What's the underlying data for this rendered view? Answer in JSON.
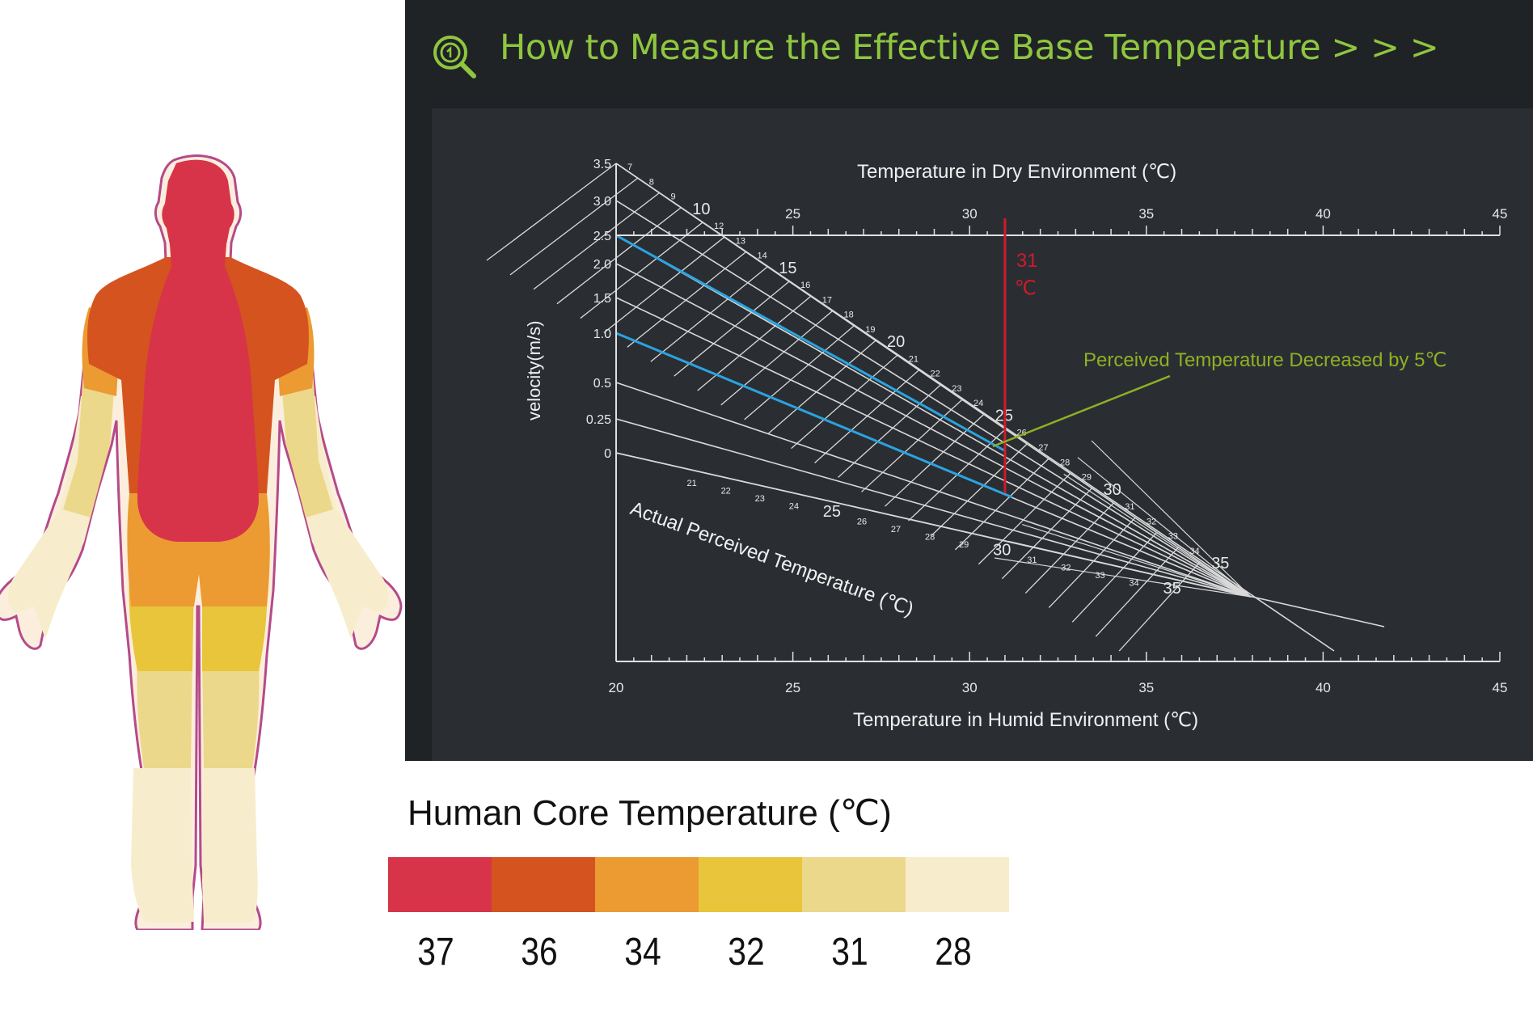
{
  "header": {
    "title": "How to Measure the Effective Base Temperature > > >",
    "icon": "magnifier-icon"
  },
  "chart_data": {
    "type": "nomogram",
    "title": "",
    "top_axis": {
      "label": "Temperature  in  Dry Environment (℃)",
      "range": [
        20,
        45
      ],
      "ticks": [
        25,
        30,
        35,
        40,
        45
      ]
    },
    "bottom_axis": {
      "label": "Temperature  in  Humid Environment (℃)",
      "range": [
        20,
        45
      ],
      "ticks": [
        20,
        25,
        30,
        35,
        40,
        45
      ]
    },
    "velocity_axis": {
      "label": "velocity(m/s)",
      "ticks": [
        "3.5",
        "3.0",
        "2.5",
        "2.0",
        "1.5",
        "1.0",
        "0.5",
        "0.25",
        "0"
      ]
    },
    "perceived_axis": {
      "label": "Actual Perceived Temperature  (℃)",
      "upper_labels": [
        {
          "t": 7,
          "label": "7"
        },
        {
          "t": 8,
          "label": "8"
        },
        {
          "t": 9,
          "label": "9"
        },
        {
          "t": 10,
          "label": "10"
        },
        {
          "t": 12,
          "label": "12"
        },
        {
          "t": 13,
          "label": "13"
        },
        {
          "t": 14,
          "label": "14"
        },
        {
          "t": 15,
          "label": "15"
        },
        {
          "t": 16,
          "label": "16"
        },
        {
          "t": 17,
          "label": "17"
        },
        {
          "t": 18,
          "label": "18"
        },
        {
          "t": 19,
          "label": "19"
        },
        {
          "t": 20,
          "label": "20"
        },
        {
          "t": 21,
          "label": "21"
        },
        {
          "t": 22,
          "label": "22"
        },
        {
          "t": 23,
          "label": "23"
        },
        {
          "t": 24,
          "label": "24"
        },
        {
          "t": 25,
          "label": "25"
        },
        {
          "t": 26,
          "label": "26"
        },
        {
          "t": 27,
          "label": "27"
        },
        {
          "t": 28,
          "label": "28"
        },
        {
          "t": 29,
          "label": "29"
        },
        {
          "t": 30,
          "label": "30"
        },
        {
          "t": 31,
          "label": "31"
        },
        {
          "t": 32,
          "label": "32"
        },
        {
          "t": 33,
          "label": "33"
        },
        {
          "t": 34,
          "label": "34"
        },
        {
          "t": 35,
          "label": "35"
        }
      ],
      "lower_labels": [
        "21",
        "22",
        "23",
        "24",
        "25",
        "26",
        "27",
        "28",
        "29",
        "30",
        "31",
        "32",
        "33",
        "34",
        "35"
      ]
    },
    "reading": {
      "dry_temperature": 31,
      "marker_label_value": "31",
      "marker_label_unit": "℃"
    },
    "annotation": "Perceived Temperature  Decreased by 5℃",
    "highlight_lines": [
      "velocity 2.5",
      "velocity 1.0"
    ],
    "colors": {
      "grid": "#d9d9d9",
      "highlight": "#2aa4e0",
      "marker": "#d11a2a",
      "annotation": "#8fb024",
      "title": "#8fc63f"
    }
  },
  "legend": {
    "title": "Human  Core Temperature  (℃)",
    "items": [
      {
        "value": "37",
        "color": "#d7344a"
      },
      {
        "value": "36",
        "color": "#d5531f"
      },
      {
        "value": "34",
        "color": "#ec9a32"
      },
      {
        "value": "32",
        "color": "#e8c53a"
      },
      {
        "value": "31",
        "color": "#ecd88a"
      },
      {
        "value": "28",
        "color": "#f7edcc"
      }
    ]
  }
}
